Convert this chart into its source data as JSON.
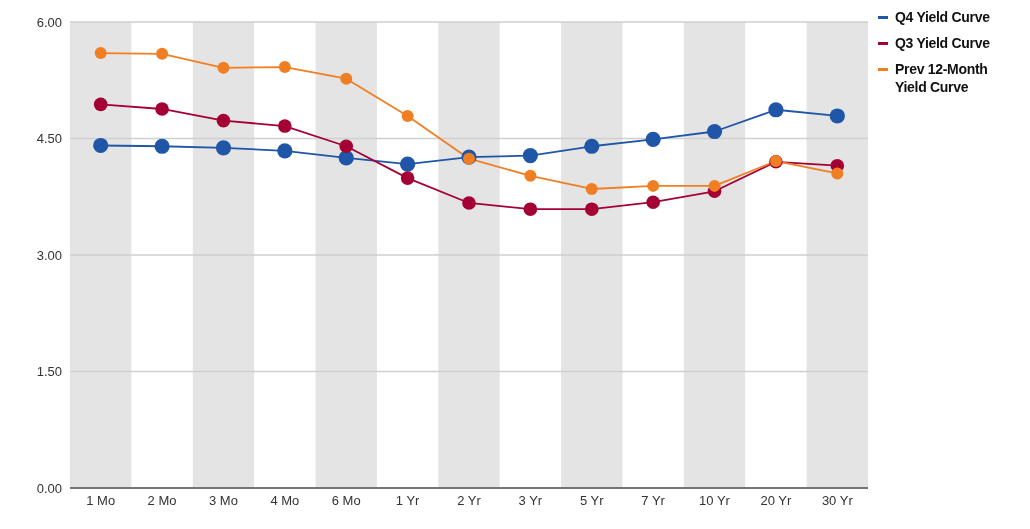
{
  "chart_data": {
    "type": "line",
    "categories": [
      "1 Mo",
      "2 Mo",
      "3 Mo",
      "4 Mo",
      "6 Mo",
      "1 Yr",
      "2 Yr",
      "3 Yr",
      "5 Yr",
      "7 Yr",
      "10 Yr",
      "20 Yr",
      "30 Yr"
    ],
    "series": [
      {
        "name": "Q4 Yield Curve",
        "color": "#1f56a8",
        "values": [
          4.41,
          4.4,
          4.38,
          4.34,
          4.25,
          4.17,
          4.26,
          4.28,
          4.4,
          4.49,
          4.59,
          4.87,
          4.79
        ]
      },
      {
        "name": "Q3 Yield Curve",
        "color": "#a50034",
        "values": [
          4.94,
          4.88,
          4.73,
          4.66,
          4.4,
          3.99,
          3.67,
          3.59,
          3.59,
          3.68,
          3.82,
          4.2,
          4.15
        ]
      },
      {
        "name": "Prev 12-Month Yield Curve",
        "color": "#f07f23",
        "values": [
          5.6,
          5.59,
          5.41,
          5.42,
          5.27,
          4.79,
          4.24,
          4.02,
          3.85,
          3.89,
          3.89,
          4.21,
          4.05
        ]
      }
    ],
    "ylim": [
      0,
      6
    ],
    "yticks": [
      {
        "value": 0,
        "label": "0.00"
      },
      {
        "value": 1.5,
        "label": "1.50"
      },
      {
        "value": 3,
        "label": "3.00"
      },
      {
        "value": 4.5,
        "label": "4.50"
      },
      {
        "value": 6,
        "label": "6.00"
      }
    ],
    "grid": "y",
    "legend": "top right",
    "marker": "circle",
    "line_style": "solid"
  }
}
